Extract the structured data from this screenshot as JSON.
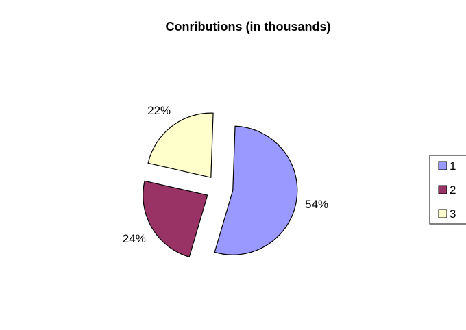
{
  "chart_data": {
    "type": "pie",
    "title": "Conributions (in thousands)",
    "categories": [
      "1",
      "2",
      "3"
    ],
    "values": [
      54,
      24,
      22
    ],
    "data_labels": [
      "54%",
      "24%",
      "22%"
    ],
    "exploded": true,
    "legend": {
      "placement": "right",
      "entries": [
        "1",
        "2",
        "3"
      ]
    },
    "colors": [
      "#9999ff",
      "#993366",
      "#ffffcc"
    ]
  }
}
